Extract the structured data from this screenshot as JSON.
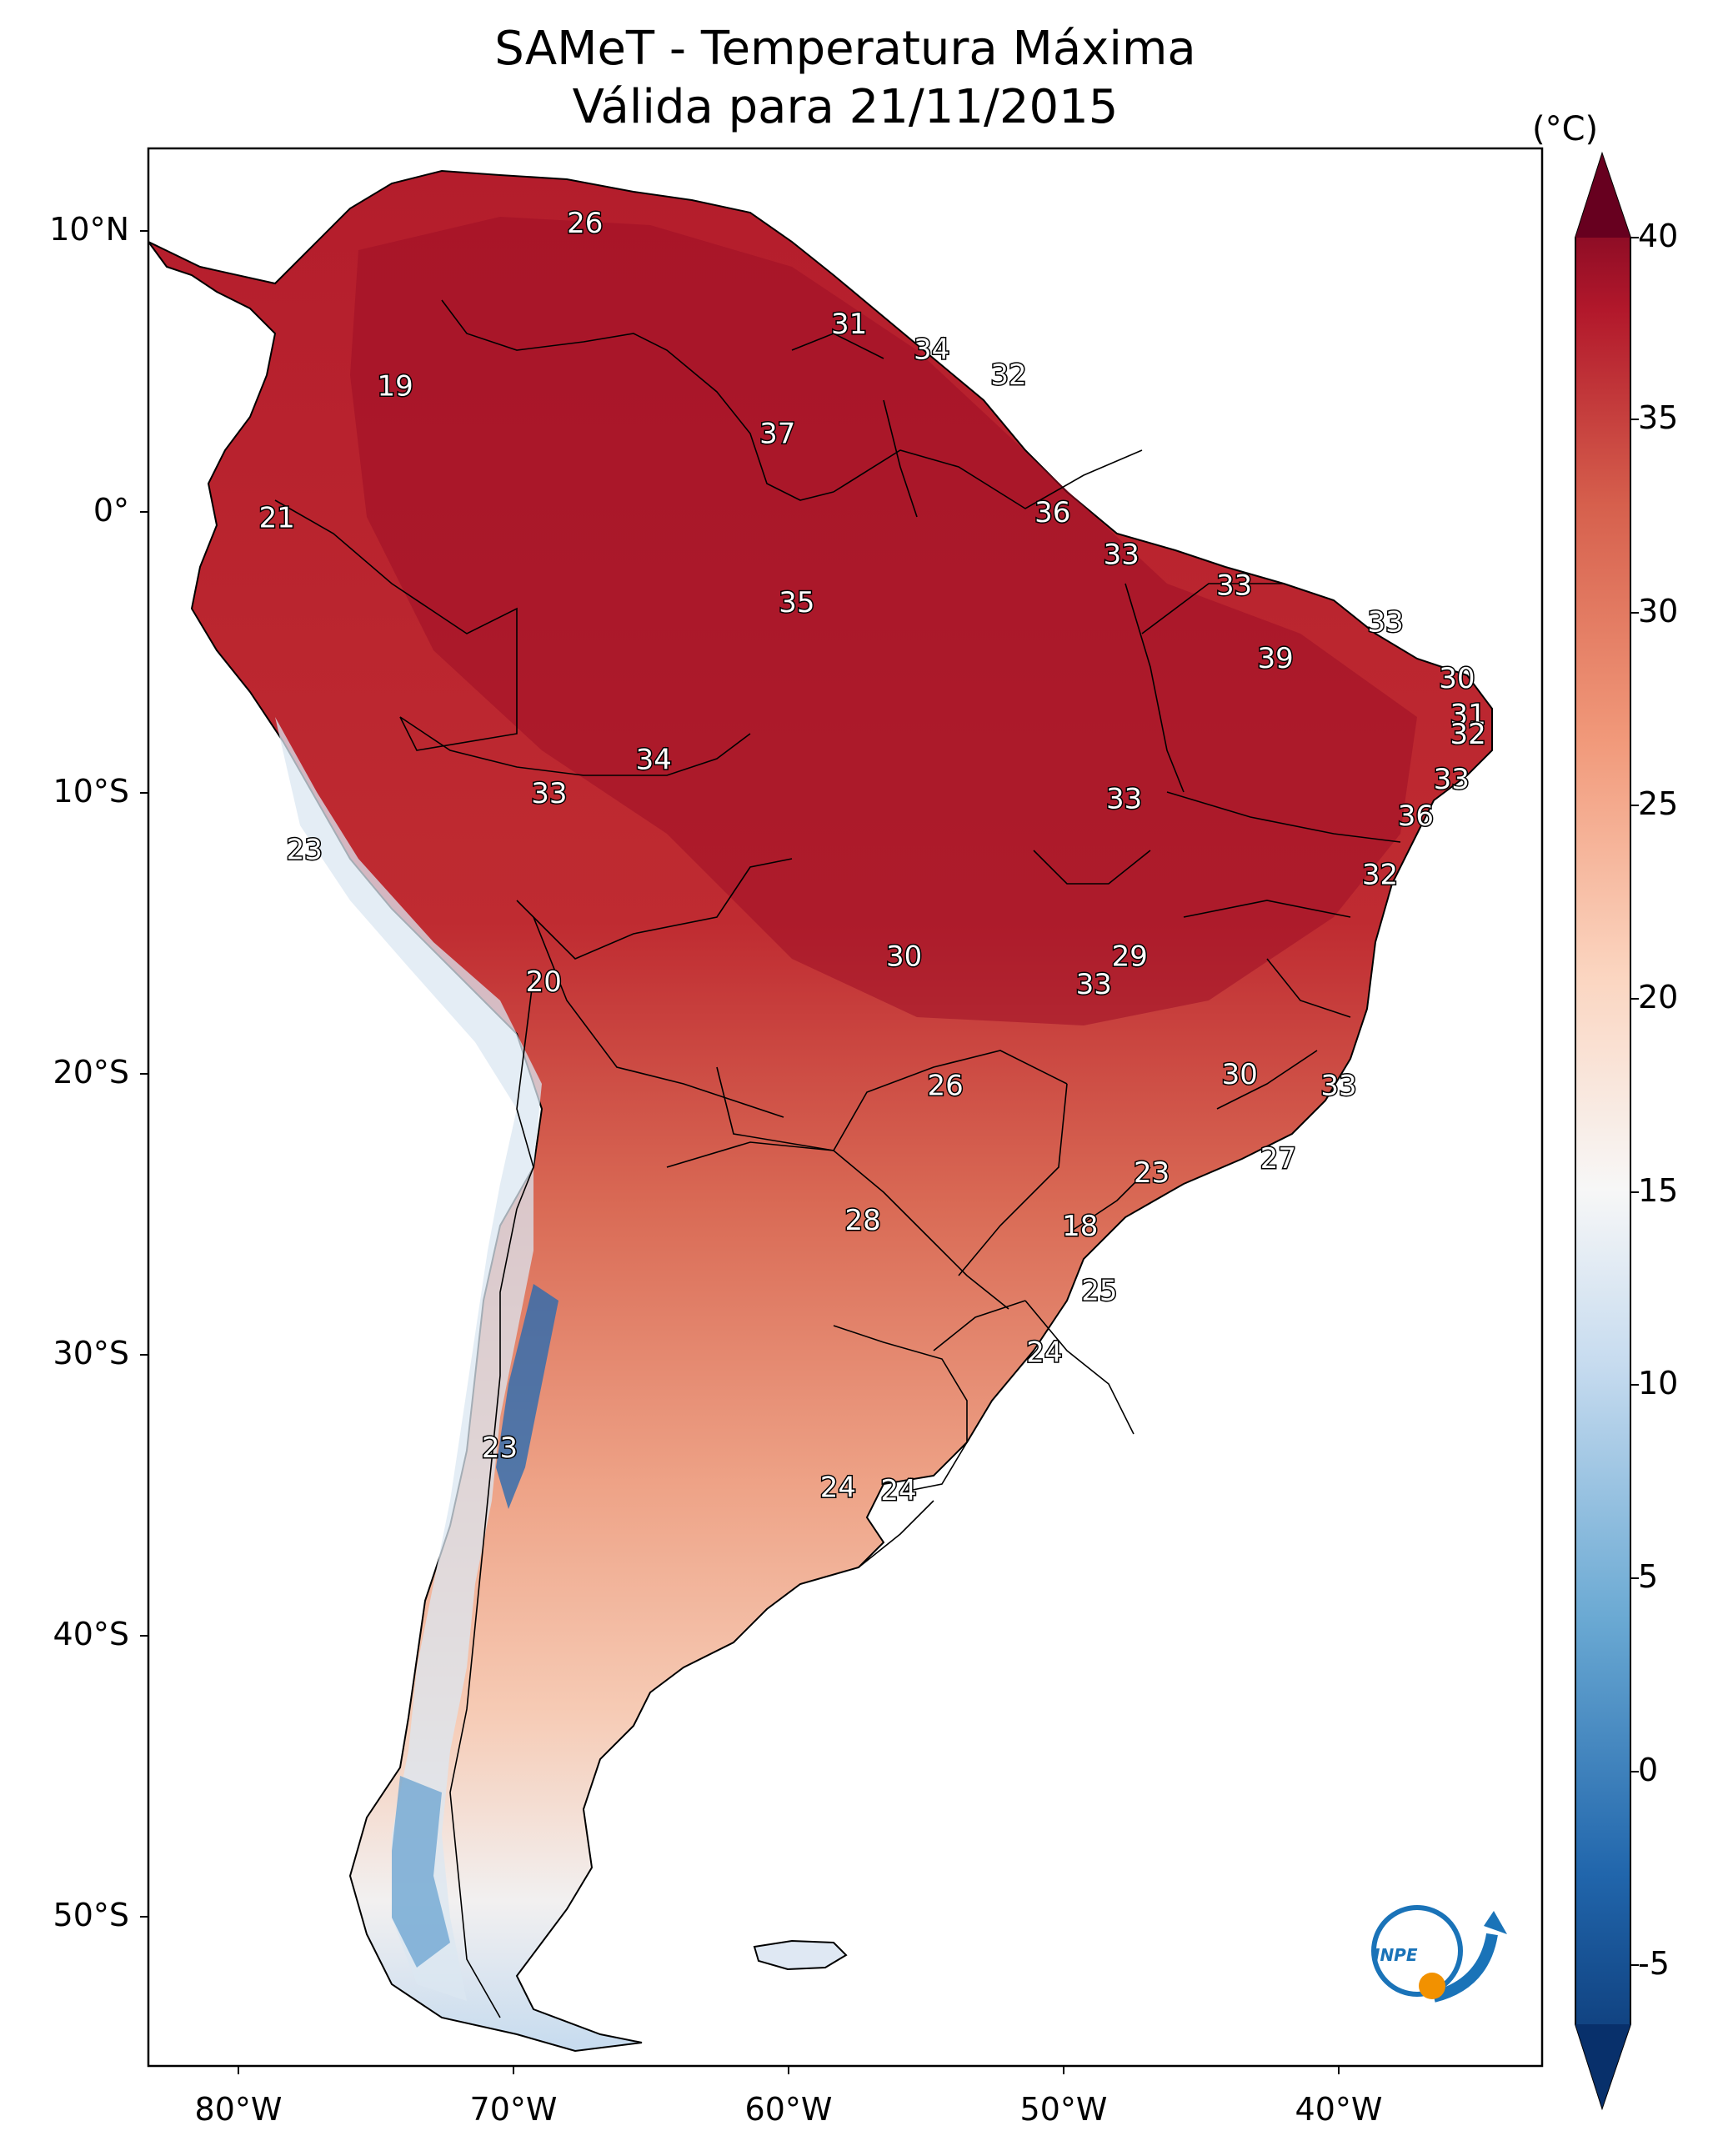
{
  "title": {
    "line1": "SAMeT - Temperatura Máxima",
    "line2": "Válida para 21/11/2015"
  },
  "axes": {
    "lat_ticks": [
      "10°N",
      "0°",
      "10°S",
      "20°S",
      "30°S",
      "40°S",
      "50°S"
    ],
    "lon_ticks": [
      "80°W",
      "70°W",
      "60°W",
      "50°W",
      "40°W"
    ]
  },
  "colorbar": {
    "unit": "(°C)",
    "ticks": [
      "40",
      "35",
      "30",
      "25",
      "20",
      "15",
      "10",
      "5",
      "0",
      "-5"
    ],
    "range": [
      -5,
      40
    ],
    "extend": "both",
    "colors": {
      "cold": "#08306b",
      "mid": "#f7f7f7",
      "hot": "#67001f"
    }
  },
  "logo": {
    "text": "INPE",
    "colors": {
      "blue": "#1a73b8",
      "orange": "#f29100"
    }
  },
  "map_labels": [
    {
      "value": "26",
      "lon": -67.4,
      "lat": 10.3
    },
    {
      "value": "19",
      "lon": -74.3,
      "lat": 4.5
    },
    {
      "value": "31",
      "lon": -57.8,
      "lat": 6.7
    },
    {
      "value": "34",
      "lon": -54.8,
      "lat": 5.8
    },
    {
      "value": "32",
      "lon": -52.0,
      "lat": 4.9
    },
    {
      "value": "37",
      "lon": -60.4,
      "lat": 2.8
    },
    {
      "value": "21",
      "lon": -78.6,
      "lat": -0.2
    },
    {
      "value": "36",
      "lon": -50.4,
      "lat": 0.0
    },
    {
      "value": "33",
      "lon": -47.9,
      "lat": -1.5
    },
    {
      "value": "33",
      "lon": -43.8,
      "lat": -2.6
    },
    {
      "value": "35",
      "lon": -59.7,
      "lat": -3.2
    },
    {
      "value": "33",
      "lon": -38.3,
      "lat": -3.9
    },
    {
      "value": "39",
      "lon": -42.3,
      "lat": -5.2
    },
    {
      "value": "30",
      "lon": -35.7,
      "lat": -5.9
    },
    {
      "value": "31",
      "lon": -35.3,
      "lat": -7.2
    },
    {
      "value": "32",
      "lon": -35.3,
      "lat": -7.9
    },
    {
      "value": "34",
      "lon": -64.9,
      "lat": -8.8
    },
    {
      "value": "33",
      "lon": -68.7,
      "lat": -10.0
    },
    {
      "value": "33",
      "lon": -47.8,
      "lat": -10.2
    },
    {
      "value": "33",
      "lon": -35.9,
      "lat": -9.5
    },
    {
      "value": "36",
      "lon": -37.2,
      "lat": -10.8
    },
    {
      "value": "23",
      "lon": -77.6,
      "lat": -12.0
    },
    {
      "value": "32",
      "lon": -38.5,
      "lat": -12.9
    },
    {
      "value": "30",
      "lon": -55.8,
      "lat": -15.8
    },
    {
      "value": "29",
      "lon": -47.6,
      "lat": -15.8
    },
    {
      "value": "33",
      "lon": -48.9,
      "lat": -16.8
    },
    {
      "value": "20",
      "lon": -68.9,
      "lat": -16.7
    },
    {
      "value": "30",
      "lon": -43.6,
      "lat": -20.0
    },
    {
      "value": "33",
      "lon": -40.0,
      "lat": -20.4
    },
    {
      "value": "26",
      "lon": -54.3,
      "lat": -20.4
    },
    {
      "value": "27",
      "lon": -42.2,
      "lat": -23.0
    },
    {
      "value": "23",
      "lon": -46.8,
      "lat": -23.5
    },
    {
      "value": "28",
      "lon": -57.3,
      "lat": -25.2
    },
    {
      "value": "18",
      "lon": -49.4,
      "lat": -25.4
    },
    {
      "value": "25",
      "lon": -48.7,
      "lat": -27.7
    },
    {
      "value": "24",
      "lon": -50.7,
      "lat": -29.9
    },
    {
      "value": "23",
      "lon": -70.5,
      "lat": -33.3
    },
    {
      "value": "24",
      "lon": -58.2,
      "lat": -34.7
    },
    {
      "value": "24",
      "lon": -56.0,
      "lat": -34.8
    }
  ]
}
